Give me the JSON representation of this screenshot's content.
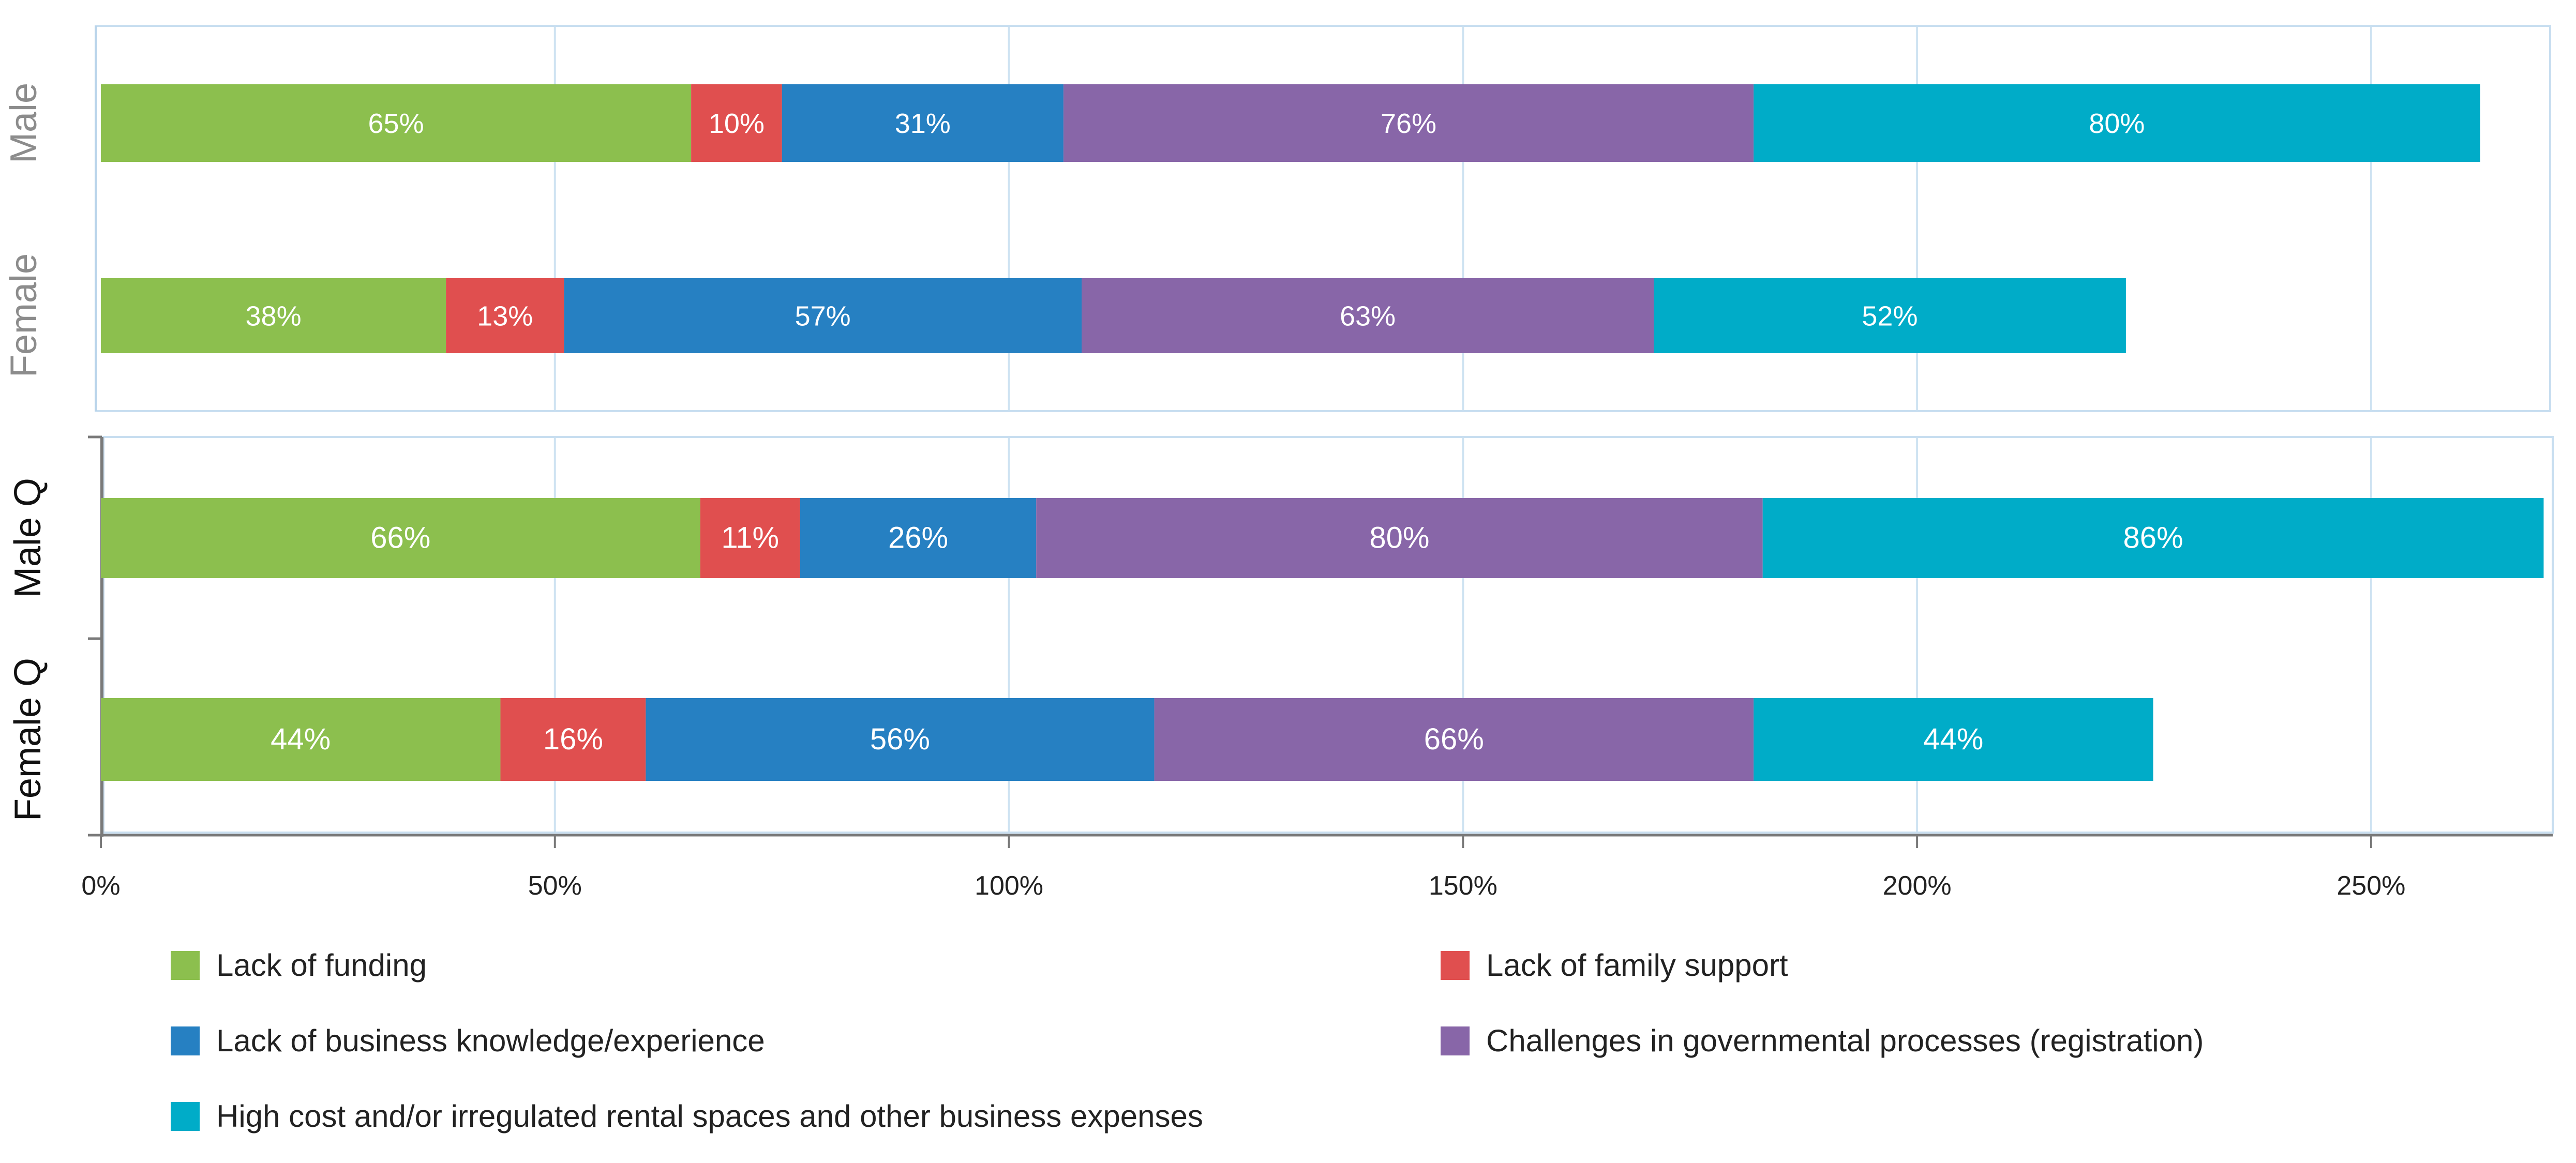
{
  "chart_data": {
    "type": "bar",
    "orientation": "horizontal",
    "stacked": true,
    "panels": [
      {
        "name": "top",
        "categories": [
          "Male",
          "Female"
        ],
        "series": [
          {
            "name": "Lack of funding",
            "values": [
              65,
              38
            ],
            "labels": [
              "65%",
              "38%"
            ]
          },
          {
            "name": "Lack of family support",
            "values": [
              10,
              13
            ],
            "labels": [
              "10%",
              "13%"
            ]
          },
          {
            "name": "Lack of business knowledge/experience",
            "values": [
              31,
              57
            ],
            "labels": [
              "31%",
              "57%"
            ]
          },
          {
            "name": "Challenges in governmental processes (registration)",
            "values": [
              76,
              63
            ],
            "labels": [
              "76%",
              "63%"
            ]
          },
          {
            "name": "High cost and/or irregulated rental spaces and other business expenses",
            "values": [
              80,
              52
            ],
            "labels": [
              "80%",
              "52%"
            ]
          }
        ]
      },
      {
        "name": "bottom",
        "categories": [
          "Male Q",
          "Female Q"
        ],
        "series": [
          {
            "name": "Lack of funding",
            "values": [
              66,
              44
            ],
            "labels": [
              "66%",
              "44%"
            ]
          },
          {
            "name": "Lack of family support",
            "values": [
              11,
              16
            ],
            "labels": [
              "11%",
              "16%"
            ]
          },
          {
            "name": "Lack of business knowledge/experience",
            "values": [
              26,
              56
            ],
            "labels": [
              "26%",
              "56%"
            ]
          },
          {
            "name": "Challenges in governmental processes (registration)",
            "values": [
              80,
              66
            ],
            "labels": [
              "80%",
              "66%"
            ]
          },
          {
            "name": "High cost and/or irregulated rental spaces and other business expenses",
            "values": [
              86,
              44
            ],
            "labels": [
              "86%",
              "44%"
            ]
          }
        ]
      }
    ],
    "xlim": [
      0,
      270
    ],
    "xticks": [
      0,
      50,
      100,
      150,
      200,
      250
    ],
    "xtick_labels": [
      "0%",
      "50%",
      "100%",
      "150%",
      "200%",
      "250%"
    ],
    "grid": true,
    "legend_position": "bottom",
    "colors": [
      "#8cbf4e",
      "#e04f4f",
      "#2680c2",
      "#8866a8",
      "#00acc8"
    ]
  },
  "legend": {
    "items": [
      {
        "label": "Lack of funding",
        "color": "#8cbf4e"
      },
      {
        "label": "Lack of family support",
        "color": "#e04f4f"
      },
      {
        "label": "Lack of business knowledge/experience",
        "color": "#2680c2"
      },
      {
        "label": "Challenges in governmental processes (registration)",
        "color": "#8866a8"
      },
      {
        "label": "High cost and/or irregulated rental spaces and other business expenses",
        "color": "#00acc8"
      }
    ]
  }
}
